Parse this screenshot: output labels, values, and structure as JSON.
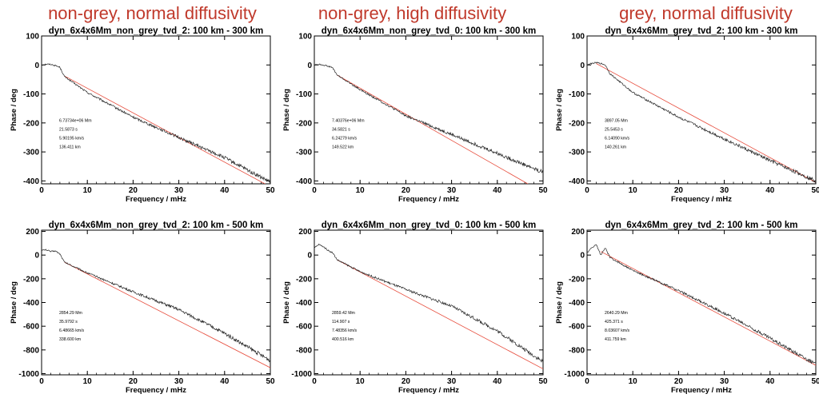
{
  "column_titles": [
    "non-grey, normal diffusivity",
    "non-grey, high diffusivity",
    "grey, normal diffusivity"
  ],
  "colors": {
    "data_line": "#222222",
    "fit_line": "#e74c3c",
    "column_title": "#c0392b"
  },
  "chart_data": [
    {
      "type": "line",
      "title": "dyn_6x4x6Mm_non_grey_tvd_2: 100 km - 300 km",
      "xlabel": "Frequency / mHz",
      "ylabel": "Phase / deg",
      "xlim": [
        0,
        50
      ],
      "ylim": [
        -410,
        100
      ],
      "xticks": [
        0,
        10,
        20,
        30,
        40,
        50
      ],
      "yticks": [
        100,
        0,
        -100,
        -200,
        -300,
        -400
      ],
      "annotations": [
        "6.73734e+06 Mm",
        "21.5873 s",
        "5.90195 km/s",
        "136.411 km"
      ],
      "series": [
        {
          "x": [
            0,
            1,
            2,
            3,
            4,
            5,
            10,
            20,
            30,
            40,
            50
          ],
          "y": [
            0,
            3,
            2,
            -2,
            -8,
            -40,
            -95,
            -180,
            -250,
            -320,
            -405
          ]
        },
        {
          "x": [
            5,
            50
          ],
          "y": [
            -38,
            -420
          ]
        }
      ]
    },
    {
      "type": "line",
      "title": "dyn_6x4x6Mm_non_grey_tvd_0: 100 km - 300 km",
      "xlabel": "Frequency / mHz",
      "ylabel": "Phase / deg",
      "xlim": [
        0,
        50
      ],
      "ylim": [
        -410,
        100
      ],
      "xticks": [
        0,
        10,
        20,
        30,
        40,
        50
      ],
      "yticks": [
        100,
        0,
        -100,
        -200,
        -300,
        -400
      ],
      "annotations": [
        "7.40376e+06 Mm",
        "34.5821 s",
        "6.24279 km/s",
        "149.522 km"
      ],
      "series": [
        {
          "x": [
            0,
            1,
            2,
            3,
            4,
            5,
            10,
            20,
            30,
            40,
            50
          ],
          "y": [
            0,
            2,
            0,
            -4,
            -10,
            -35,
            -85,
            -175,
            -240,
            -305,
            -370
          ]
        },
        {
          "x": [
            5,
            50
          ],
          "y": [
            -35,
            -440
          ]
        }
      ]
    },
    {
      "type": "line",
      "title": "dyn_6x4x6Mm_grey_tvd_2: 100 km - 300 km",
      "xlabel": "Frequency / mHz",
      "ylabel": "Phase / deg",
      "xlim": [
        0,
        50
      ],
      "ylim": [
        -410,
        100
      ],
      "xticks": [
        0,
        10,
        20,
        30,
        40,
        50
      ],
      "yticks": [
        100,
        0,
        -100,
        -200,
        -300,
        -400
      ],
      "annotations": [
        "3897.05 Mm",
        "25.5453 s",
        "6.14090 km/s",
        "140.261 km"
      ],
      "series": [
        {
          "x": [
            0,
            1,
            2,
            3,
            4,
            5,
            10,
            20,
            30,
            40,
            50
          ],
          "y": [
            0,
            5,
            8,
            5,
            0,
            -30,
            -95,
            -180,
            -255,
            -330,
            -400
          ]
        },
        {
          "x": [
            2,
            50
          ],
          "y": [
            5,
            -405
          ]
        }
      ]
    },
    {
      "type": "line",
      "title": "dyn_6x4x6Mm_non_grey_tvd_2: 100 km - 500 km",
      "xlabel": "Frequency / mHz",
      "ylabel": "Phase / deg",
      "xlim": [
        0,
        50
      ],
      "ylim": [
        -1010,
        210
      ],
      "xticks": [
        0,
        10,
        20,
        30,
        40,
        50
      ],
      "yticks": [
        200,
        0,
        -200,
        -400,
        -600,
        -800,
        -1000
      ],
      "annotations": [
        "2854.29 Mm",
        "35.9792 s",
        "6.48665 km/s",
        "338.600 km"
      ],
      "series": [
        {
          "x": [
            0,
            1,
            2,
            3,
            4,
            5,
            10,
            20,
            30,
            40,
            50
          ],
          "y": [
            40,
            45,
            30,
            35,
            10,
            -60,
            -150,
            -310,
            -460,
            -660,
            -890
          ]
        },
        {
          "x": [
            5,
            50
          ],
          "y": [
            -60,
            -950
          ]
        }
      ]
    },
    {
      "type": "line",
      "title": "dyn_6x4x6Mm_non_grey_tvd_0: 100 km - 500 km",
      "xlabel": "Frequency / mHz",
      "ylabel": "Phase / deg",
      "xlim": [
        0,
        50
      ],
      "ylim": [
        -1010,
        210
      ],
      "xticks": [
        0,
        10,
        20,
        30,
        40,
        50
      ],
      "yticks": [
        200,
        0,
        -200,
        -400,
        -600,
        -800,
        -1000
      ],
      "annotations": [
        "2859.42 Mm",
        "114.907 s",
        "7.48356 km/s",
        "400.516 km"
      ],
      "series": [
        {
          "x": [
            0,
            1,
            2,
            3,
            4,
            5,
            10,
            20,
            30,
            40,
            50
          ],
          "y": [
            60,
            90,
            70,
            40,
            20,
            -40,
            -140,
            -290,
            -430,
            -640,
            -900
          ]
        },
        {
          "x": [
            5,
            50
          ],
          "y": [
            -40,
            -960
          ]
        }
      ]
    },
    {
      "type": "line",
      "title": "dyn_6x4x6Mm_grey_tvd_2: 100 km - 500 km",
      "xlabel": "Frequency / mHz",
      "ylabel": "Phase / deg",
      "xlim": [
        0,
        50
      ],
      "ylim": [
        -1010,
        210
      ],
      "xticks": [
        0,
        10,
        20,
        30,
        40,
        50
      ],
      "yticks": [
        200,
        0,
        -200,
        -400,
        -600,
        -800,
        -1000
      ],
      "annotations": [
        "2640.29 Mm",
        "425.371 s",
        "8.03607 km/s",
        "411.759 km"
      ],
      "series": [
        {
          "x": [
            0,
            1,
            2,
            3,
            4,
            5,
            10,
            20,
            30,
            40,
            50
          ],
          "y": [
            20,
            60,
            90,
            0,
            60,
            -20,
            -130,
            -300,
            -490,
            -700,
            -920
          ]
        },
        {
          "x": [
            3,
            50
          ],
          "y": [
            30,
            -930
          ]
        }
      ]
    }
  ]
}
